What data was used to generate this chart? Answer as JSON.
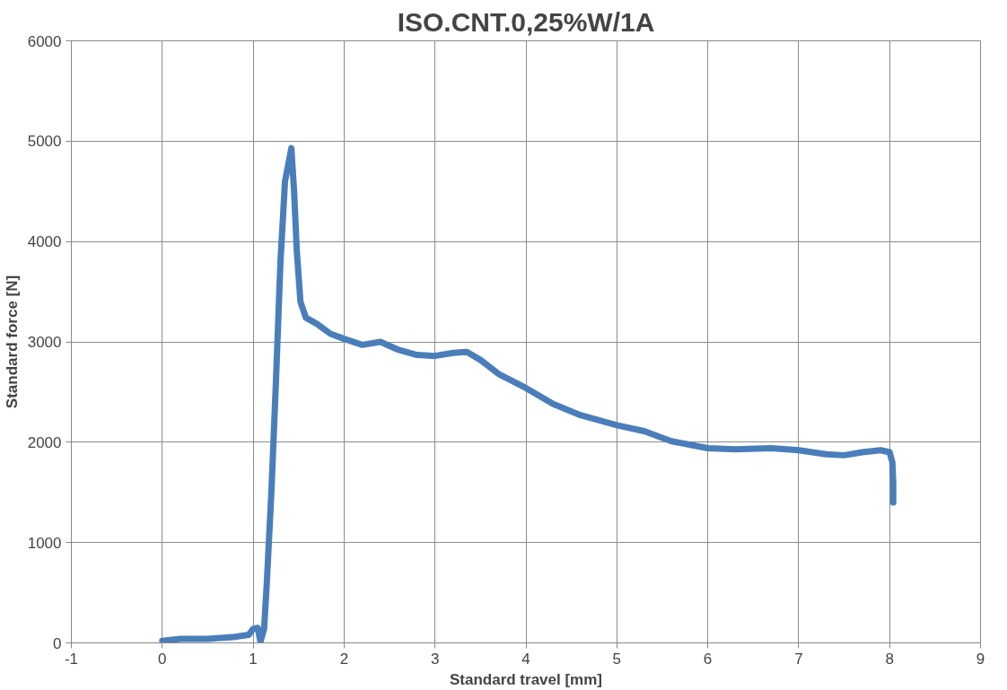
{
  "chart_data": {
    "type": "line",
    "title": "ISO.CNT.0,25%W/1A",
    "xlabel": "Standard travel [mm]",
    "ylabel": "Standard force [N]",
    "x": [
      0,
      0.2,
      0.5,
      0.8,
      0.95,
      1.0,
      1.05,
      1.08,
      1.12,
      1.15,
      1.2,
      1.25,
      1.3,
      1.35,
      1.42,
      1.45,
      1.48,
      1.52,
      1.58,
      1.7,
      1.85,
      2.0,
      2.2,
      2.4,
      2.6,
      2.8,
      3.0,
      3.2,
      3.35,
      3.5,
      3.7,
      4.0,
      4.3,
      4.6,
      5.0,
      5.3,
      5.6,
      6.0,
      6.3,
      6.7,
      7.0,
      7.3,
      7.5,
      7.7,
      7.9,
      8.0,
      8.03,
      8.04,
      8.04
    ],
    "series": [
      {
        "color": "#4a7ebb",
        "values": [
          20,
          40,
          40,
          60,
          80,
          140,
          150,
          10,
          140,
          600,
          1500,
          2600,
          3800,
          4600,
          4930,
          4500,
          3900,
          3400,
          3240,
          3180,
          3080,
          3030,
          2970,
          3000,
          2920,
          2870,
          2860,
          2890,
          2900,
          2820,
          2680,
          2540,
          2380,
          2270,
          2170,
          2110,
          2010,
          1940,
          1930,
          1940,
          1920,
          1880,
          1870,
          1900,
          1920,
          1900,
          1800,
          1600,
          1400
        ]
      }
    ],
    "xlim": [
      -1,
      9
    ],
    "xticks": [
      -1,
      0,
      1,
      2,
      3,
      4,
      5,
      6,
      7,
      8,
      9
    ],
    "ylim": [
      0,
      6000
    ],
    "yticks": [
      0,
      1000,
      2000,
      3000,
      4000,
      5000,
      6000
    ],
    "grid": true,
    "marker": "none",
    "line_style": "solid"
  }
}
